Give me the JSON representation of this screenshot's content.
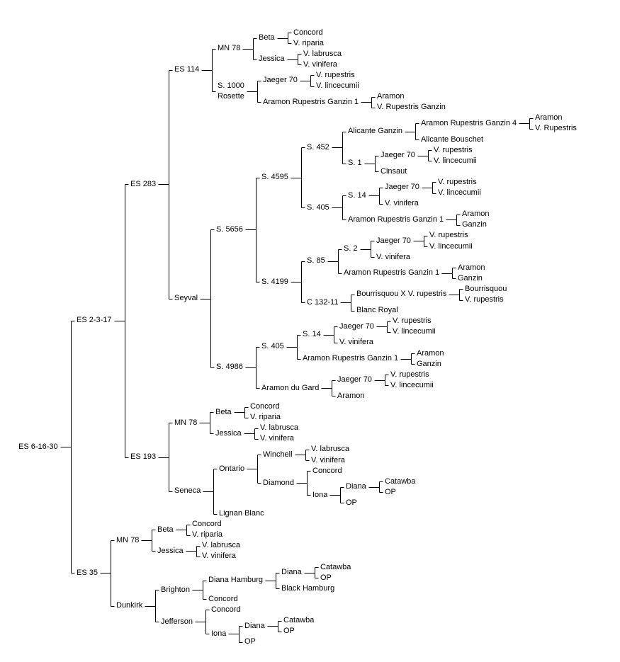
{
  "diagram": {
    "type": "pedigree-tree",
    "root_name": "ES 6-16-30",
    "background_color": "#ffffff",
    "line_color": "#000000",
    "text_color": "#000000"
  },
  "tree": {
    "label": "ES 6-16-30",
    "children": [
      {
        "label": "ES 2-3-17",
        "children": [
          {
            "label": "ES 283",
            "children": [
              {
                "label": "ES 114",
                "children": [
                  {
                    "label": "MN 78",
                    "children": [
                      {
                        "label": "Beta",
                        "children": [
                          {
                            "label": "Concord"
                          },
                          {
                            "label": "V. riparia"
                          }
                        ]
                      },
                      {
                        "label": "Jessica",
                        "children": [
                          {
                            "label": "V. labrusca"
                          },
                          {
                            "label": "V. vinifera"
                          }
                        ]
                      }
                    ]
                  },
                  {
                    "label": "S. 1000\nRosette",
                    "children": [
                      {
                        "label": "Jaeger 70",
                        "children": [
                          {
                            "label": "V. rupestris"
                          },
                          {
                            "label": "V. lincecumii"
                          }
                        ]
                      },
                      {
                        "label": "Aramon Rupestris Ganzin 1",
                        "children": [
                          {
                            "label": "Aramon"
                          },
                          {
                            "label": "V. Rupestris Ganzin"
                          }
                        ]
                      }
                    ]
                  }
                ]
              },
              {
                "label": "Seyval",
                "children": [
                  {
                    "label": "S. 5656",
                    "children": [
                      {
                        "label": "S. 4595",
                        "children": [
                          {
                            "label": "S. 452",
                            "children": [
                              {
                                "label": "Alicante Ganzin",
                                "children": [
                                  {
                                    "label": "Aramon Rupestris Ganzin 4",
                                    "children": [
                                      {
                                        "label": "Aramon"
                                      },
                                      {
                                        "label": "V. Rupestris"
                                      }
                                    ]
                                  },
                                  {
                                    "label": "Alicante Bouschet"
                                  }
                                ]
                              },
                              {
                                "label": "S. 1",
                                "children": [
                                  {
                                    "label": "Jaeger 70",
                                    "children": [
                                      {
                                        "label": "V. rupestris"
                                      },
                                      {
                                        "label": "V. lincecumii"
                                      }
                                    ]
                                  },
                                  {
                                    "label": "Cinsaut"
                                  }
                                ]
                              }
                            ]
                          },
                          {
                            "label": "S. 405",
                            "children": [
                              {
                                "label": "S. 14",
                                "children": [
                                  {
                                    "label": "Jaeger 70",
                                    "children": [
                                      {
                                        "label": "V. rupestris"
                                      },
                                      {
                                        "label": "V. lincecumii"
                                      }
                                    ]
                                  },
                                  {
                                    "label": "V. vinifera"
                                  }
                                ]
                              },
                              {
                                "label": "Aramon Rupestris Ganzin 1",
                                "children": [
                                  {
                                    "label": "Aramon"
                                  },
                                  {
                                    "label": "Ganzin"
                                  }
                                ]
                              }
                            ]
                          }
                        ]
                      },
                      {
                        "label": "S. 4199",
                        "children": [
                          {
                            "label": "S. 85",
                            "children": [
                              {
                                "label": "S. 2",
                                "children": [
                                  {
                                    "label": "Jaeger 70",
                                    "children": [
                                      {
                                        "label": "V. rupestris"
                                      },
                                      {
                                        "label": "V. lincecumii"
                                      }
                                    ]
                                  },
                                  {
                                    "label": "V. vinifera"
                                  }
                                ]
                              },
                              {
                                "label": "Aramon Rupestris Ganzin 1",
                                "children": [
                                  {
                                    "label": "Aramon"
                                  },
                                  {
                                    "label": "Ganzin"
                                  }
                                ]
                              }
                            ]
                          },
                          {
                            "label": "C 132-11",
                            "children": [
                              {
                                "label": "Bourrisquou X V. rupestris",
                                "children": [
                                  {
                                    "label": "Bourrisquou"
                                  },
                                  {
                                    "label": "V. rupestris"
                                  }
                                ]
                              },
                              {
                                "label": "Blanc Royal"
                              }
                            ]
                          }
                        ]
                      }
                    ]
                  },
                  {
                    "label": "S. 4986",
                    "children": [
                      {
                        "label": "S. 405",
                        "children": [
                          {
                            "label": "S. 14",
                            "children": [
                              {
                                "label": "Jaeger 70",
                                "children": [
                                  {
                                    "label": "V. rupestris"
                                  },
                                  {
                                    "label": "V. lincecumii"
                                  }
                                ]
                              },
                              {
                                "label": "V. vinifera"
                              }
                            ]
                          },
                          {
                            "label": "Aramon Rupestris Ganzin 1",
                            "children": [
                              {
                                "label": "Aramon"
                              },
                              {
                                "label": "Ganzin"
                              }
                            ]
                          }
                        ]
                      },
                      {
                        "label": "Aramon du Gard",
                        "children": [
                          {
                            "label": "Jaeger 70",
                            "children": [
                              {
                                "label": "V. rupestris"
                              },
                              {
                                "label": "V. lincecumii"
                              }
                            ]
                          },
                          {
                            "label": "Aramon"
                          }
                        ]
                      }
                    ]
                  }
                ]
              }
            ]
          },
          {
            "label": "ES 193",
            "children": [
              {
                "label": "MN 78",
                "children": [
                  {
                    "label": "Beta",
                    "children": [
                      {
                        "label": "Concord"
                      },
                      {
                        "label": "V. riparia"
                      }
                    ]
                  },
                  {
                    "label": "Jessica",
                    "children": [
                      {
                        "label": "V. labrusca"
                      },
                      {
                        "label": "V. vinifera"
                      }
                    ]
                  }
                ]
              },
              {
                "label": "Seneca",
                "children": [
                  {
                    "label": "Ontario",
                    "children": [
                      {
                        "label": "Winchell",
                        "children": [
                          {
                            "label": "V. labrusca"
                          },
                          {
                            "label": "V. vinifera"
                          }
                        ]
                      },
                      {
                        "label": "Diamond",
                        "children": [
                          {
                            "label": "Concord"
                          },
                          {
                            "label": "Iona",
                            "children": [
                              {
                                "label": "Diana",
                                "children": [
                                  {
                                    "label": "Catawba"
                                  },
                                  {
                                    "label": "OP"
                                  }
                                ]
                              },
                              {
                                "label": "OP"
                              }
                            ]
                          }
                        ]
                      }
                    ]
                  },
                  {
                    "label": "Lignan Blanc"
                  }
                ]
              }
            ]
          }
        ]
      },
      {
        "label": "ES 35",
        "children": [
          {
            "label": "MN 78",
            "children": [
              {
                "label": "Beta",
                "children": [
                  {
                    "label": "Concord"
                  },
                  {
                    "label": "V. riparia"
                  }
                ]
              },
              {
                "label": "Jessica",
                "children": [
                  {
                    "label": "V. labrusca"
                  },
                  {
                    "label": "V. vinifera"
                  }
                ]
              }
            ]
          },
          {
            "label": "Dunkirk",
            "children": [
              {
                "label": "Brighton",
                "children": [
                  {
                    "label": "Diana Hamburg",
                    "children": [
                      {
                        "label": "Diana",
                        "children": [
                          {
                            "label": "Catawba"
                          },
                          {
                            "label": "OP"
                          }
                        ]
                      },
                      {
                        "label": "Black Hamburg"
                      }
                    ]
                  },
                  {
                    "label": "Concord"
                  }
                ]
              },
              {
                "label": "Jefferson",
                "children": [
                  {
                    "label": "Concord"
                  },
                  {
                    "label": "Iona",
                    "children": [
                      {
                        "label": "Diana",
                        "children": [
                          {
                            "label": "Catawba"
                          },
                          {
                            "label": "OP"
                          }
                        ]
                      },
                      {
                        "label": "OP"
                      }
                    ]
                  }
                ]
              }
            ]
          }
        ]
      }
    ]
  }
}
